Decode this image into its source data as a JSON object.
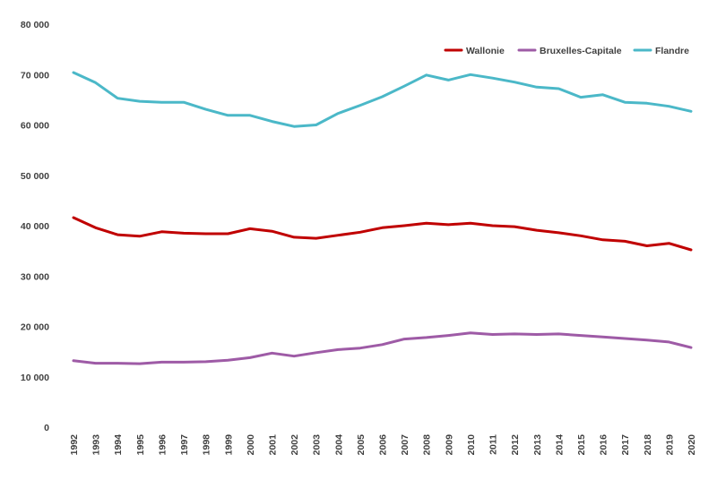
{
  "chart_data": {
    "type": "line",
    "title": "",
    "xlabel": "",
    "ylabel": "",
    "x": [
      "1992",
      "1993",
      "1994",
      "1995",
      "1996",
      "1997",
      "1998",
      "1999",
      "2000",
      "2001",
      "2002",
      "2003",
      "2004",
      "2005",
      "2006",
      "2007",
      "2008",
      "2009",
      "2010",
      "2011",
      "2012",
      "2013",
      "2014",
      "2015",
      "2016",
      "2017",
      "2018",
      "2019",
      "2020"
    ],
    "ylim": [
      0,
      80000
    ],
    "y_ticks": [
      0,
      10000,
      20000,
      30000,
      40000,
      50000,
      60000,
      70000,
      80000
    ],
    "y_tick_labels": [
      "0",
      "10 000",
      "20 000",
      "30 000",
      "40 000",
      "50 000",
      "60 000",
      "70 000",
      "80 000"
    ],
    "grid": false,
    "legend_position": "top-right",
    "series": [
      {
        "name": "Wallonie",
        "color": "#c00000",
        "values": [
          41600,
          39600,
          38200,
          37900,
          38800,
          38500,
          38400,
          38400,
          39400,
          38900,
          37700,
          37500,
          38100,
          38700,
          39600,
          40000,
          40500,
          40200,
          40500,
          40000,
          39800,
          39100,
          38600,
          38000,
          37200,
          36900,
          36000,
          36500,
          35200
        ]
      },
      {
        "name": "Bruxelles-Capitale",
        "color": "#9e5ba6",
        "values": [
          13200,
          12700,
          12700,
          12600,
          12900,
          12900,
          13000,
          13300,
          13800,
          14700,
          14100,
          14800,
          15400,
          15700,
          16400,
          17500,
          17800,
          18200,
          18700,
          18400,
          18500,
          18400,
          18500,
          18200,
          17900,
          17600,
          17300,
          16900,
          15800
        ]
      },
      {
        "name": "Flandre",
        "color": "#4bb8c8",
        "values": [
          70400,
          68400,
          65300,
          64700,
          64500,
          64500,
          63100,
          61900,
          61900,
          60700,
          59700,
          60000,
          62300,
          63900,
          65600,
          67700,
          69900,
          68900,
          70000,
          69300,
          68500,
          67500,
          67200,
          65500,
          66000,
          64500,
          64300,
          63700,
          62700
        ]
      }
    ]
  }
}
